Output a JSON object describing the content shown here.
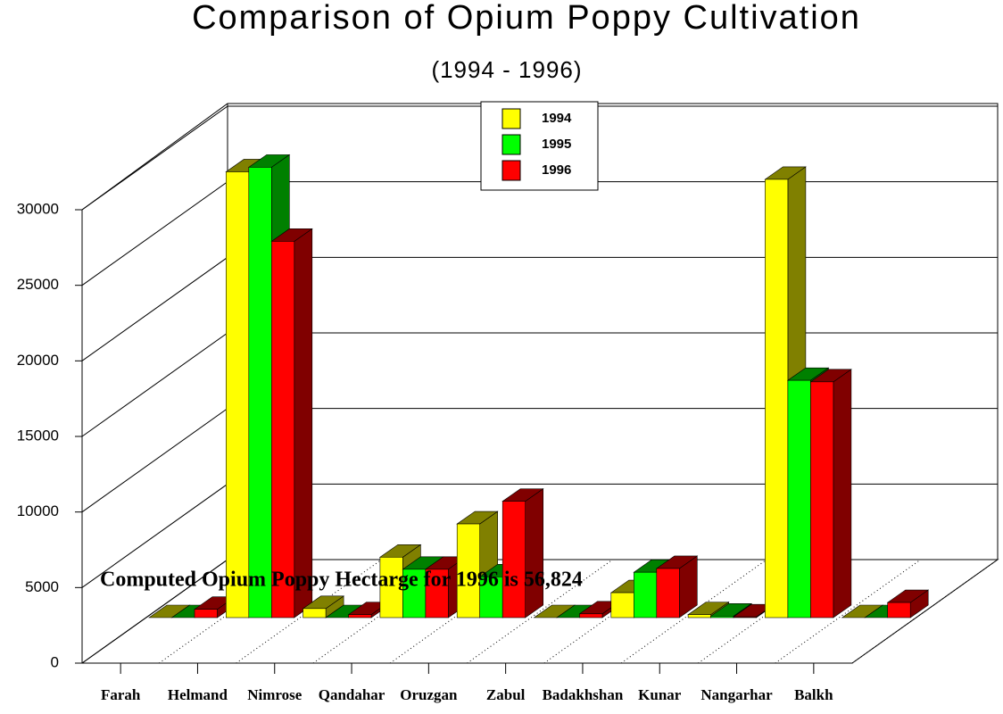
{
  "chart_data": {
    "type": "bar3d",
    "title": "Comparison of Opium Poppy Cultivation",
    "subtitle": "(1994 - 1996)",
    "annotation": "Computed Opium Poppy Hectarge for 1996 is 56,824",
    "categories": [
      "Farah",
      "Helmand",
      "Nimrose",
      "Qandahar",
      "Oruzgan",
      "Zabul",
      "Badakhshan",
      "Kunar",
      "Nangarhar",
      "Balkh"
    ],
    "series": [
      {
        "name": "1994",
        "color": "#ffff00",
        "values": [
          0,
          29500,
          600,
          4000,
          6200,
          0,
          1650,
          200,
          29000,
          0
        ]
      },
      {
        "name": "1995",
        "color": "#00ff00",
        "values": [
          0,
          29800,
          0,
          3200,
          2700,
          0,
          3000,
          100,
          15700,
          0
        ]
      },
      {
        "name": "1996",
        "color": "#ff0000",
        "values": [
          550,
          24900,
          200,
          3200,
          7700,
          250,
          3250,
          50,
          15600,
          1000
        ]
      }
    ],
    "ylim": [
      0,
      30000
    ],
    "yticks": [
      0,
      5000,
      10000,
      15000,
      20000,
      25000,
      30000
    ],
    "grid": true
  }
}
